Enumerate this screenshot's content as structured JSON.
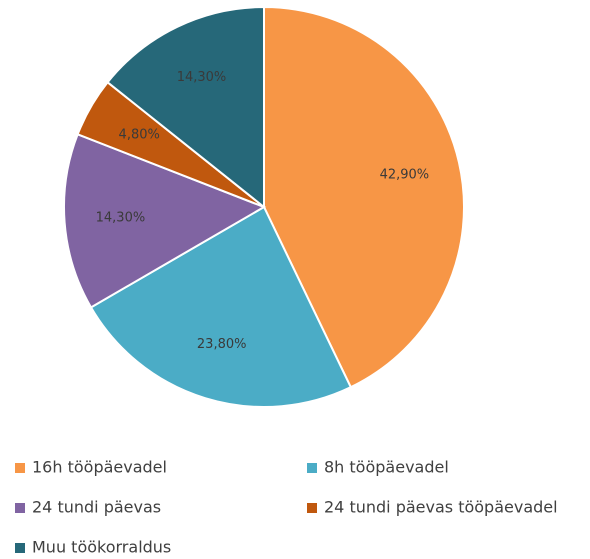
{
  "chart_data": {
    "type": "pie",
    "categories": [
      "16h tööpäevadel",
      "8h tööpäevadel",
      "24 tundi päevas",
      "24 tundi päevas tööpäevadel",
      "Muu töökorraldus"
    ],
    "values": [
      42.9,
      23.8,
      14.3,
      4.8,
      14.3
    ],
    "value_labels": [
      "42,90%",
      "23,80%",
      "14,30%",
      "4,80%",
      "14,30%"
    ],
    "colors": [
      "#f79646",
      "#4bacc6",
      "#8064a2",
      "#c0580e",
      "#266879"
    ],
    "legend": "bottom"
  }
}
